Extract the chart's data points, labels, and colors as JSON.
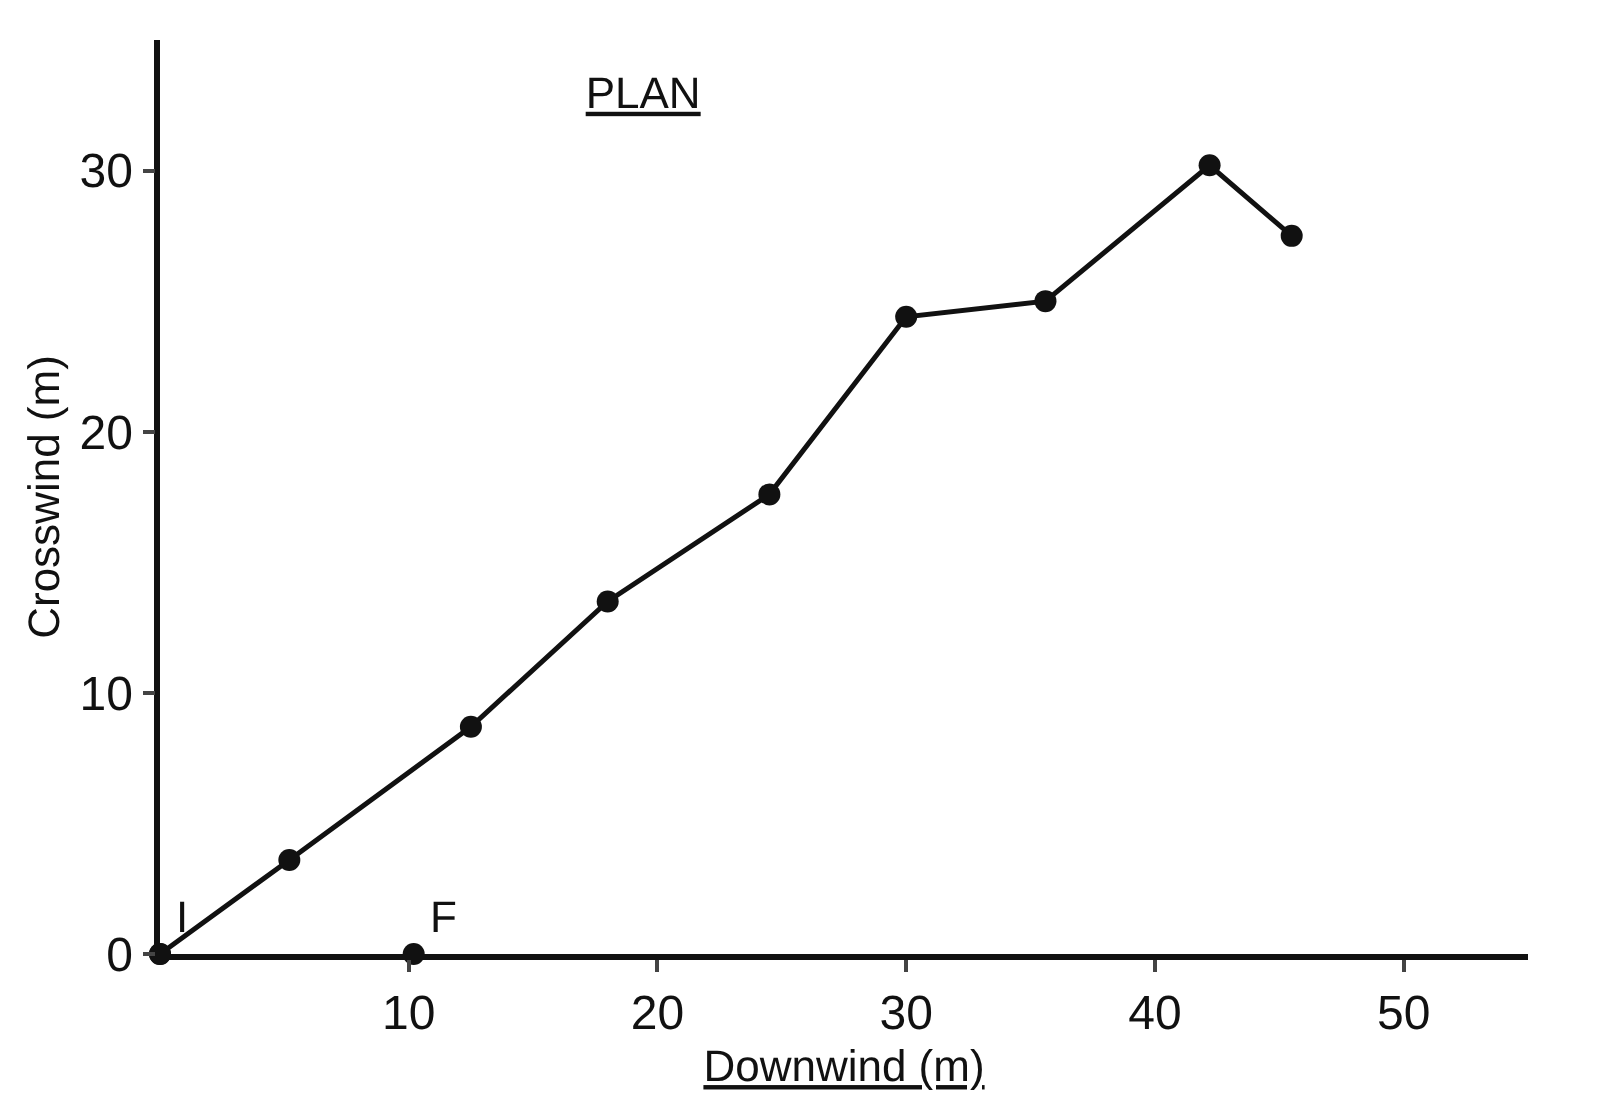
{
  "chart_data": {
    "type": "line",
    "title": "PLAN",
    "xlabel": "Downwind (m)",
    "ylabel": "Crosswind (m)",
    "series": [
      {
        "color": "#111111",
        "x": [
          0,
          5.2,
          12.5,
          18,
          24.5,
          30,
          35.6,
          42.2,
          45.5
        ],
        "values": [
          0,
          3.6,
          8.7,
          13.5,
          17.6,
          24.4,
          25.0,
          30.2,
          27.5
        ]
      },
      {
        "type": "scatter",
        "color": "#111111",
        "x": [
          0,
          10.2
        ],
        "values": [
          0,
          0
        ]
      }
    ],
    "annotations": [
      {
        "text": "I",
        "x": 0,
        "y": 0
      },
      {
        "text": "F",
        "x": 10.2,
        "y": 0
      }
    ],
    "xlim": [
      0,
      55
    ],
    "ylim": [
      0,
      35
    ],
    "xticks": [
      10,
      20,
      30,
      40,
      50
    ],
    "yticks": [
      0,
      10,
      20,
      30
    ],
    "marker": "circle"
  }
}
